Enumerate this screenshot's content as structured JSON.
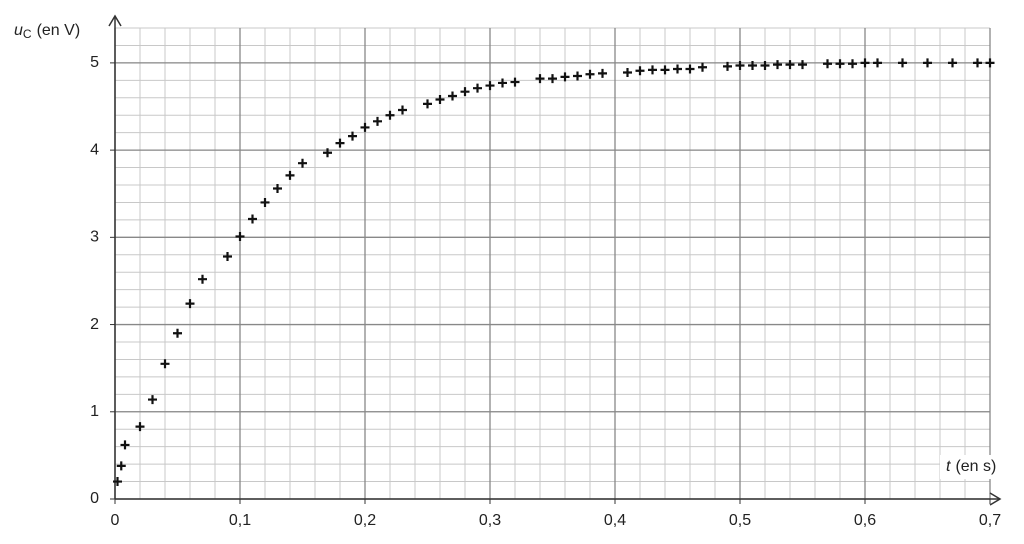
{
  "chart_data": {
    "type": "scatter",
    "ylabel": {
      "symbol": "u",
      "subscript": "C",
      "unit": "(en V)"
    },
    "xlabel": {
      "symbol": "t",
      "unit": "(en s)"
    },
    "x": [
      0.002,
      0.005,
      0.008,
      0.02,
      0.03,
      0.04,
      0.05,
      0.06,
      0.07,
      0.09,
      0.1,
      0.11,
      0.12,
      0.13,
      0.14,
      0.15,
      0.17,
      0.18,
      0.19,
      0.2,
      0.21,
      0.22,
      0.23,
      0.25,
      0.26,
      0.27,
      0.28,
      0.29,
      0.3,
      0.31,
      0.32,
      0.34,
      0.35,
      0.36,
      0.37,
      0.38,
      0.39,
      0.41,
      0.42,
      0.43,
      0.44,
      0.45,
      0.46,
      0.47,
      0.49,
      0.5,
      0.51,
      0.52,
      0.53,
      0.54,
      0.55,
      0.57,
      0.58,
      0.59,
      0.6,
      0.61,
      0.63,
      0.65,
      0.67,
      0.69,
      0.7
    ],
    "values": [
      0.2,
      0.38,
      0.62,
      0.83,
      1.14,
      1.55,
      1.9,
      2.24,
      2.52,
      2.78,
      3.01,
      3.21,
      3.4,
      3.56,
      3.71,
      3.85,
      3.97,
      4.08,
      4.16,
      4.26,
      4.33,
      4.4,
      4.46,
      4.53,
      4.58,
      4.62,
      4.67,
      4.71,
      4.74,
      4.77,
      4.78,
      4.82,
      4.82,
      4.84,
      4.85,
      4.87,
      4.88,
      4.89,
      4.91,
      4.92,
      4.92,
      4.93,
      4.93,
      4.95,
      4.96,
      4.97,
      4.97,
      4.97,
      4.98,
      4.98,
      4.98,
      4.99,
      4.99,
      4.99,
      5.0,
      5.0,
      5.0,
      5.0,
      5.0,
      5.0,
      5.0
    ],
    "color": "#111111",
    "xlim": [
      0,
      0.7
    ],
    "ylim": [
      0,
      5.4
    ],
    "xticks": [
      0,
      {
        "value": 0.1,
        "label": "0,1"
      },
      {
        "value": 0.2,
        "label": "0,2"
      },
      {
        "value": 0.3,
        "label": "0,3"
      },
      {
        "value": 0.4,
        "label": "0,4"
      },
      {
        "value": 0.5,
        "label": "0,5"
      },
      {
        "value": 0.6,
        "label": "0,6"
      },
      {
        "value": 0.7,
        "label": "0,7"
      }
    ],
    "yticks": [
      0,
      1,
      2,
      3,
      4,
      5
    ],
    "grid": true
  }
}
